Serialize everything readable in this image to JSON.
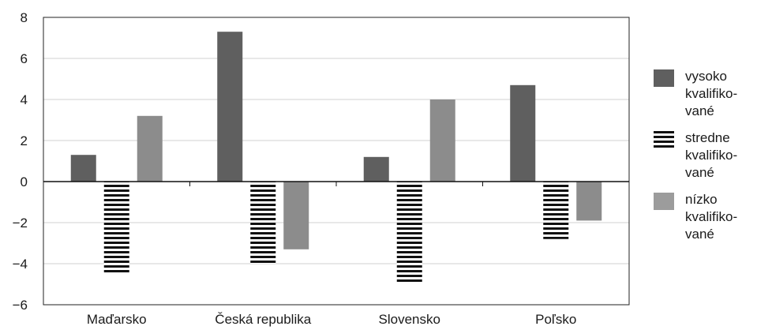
{
  "chart_data": {
    "type": "bar",
    "categories": [
      "Maďarsko",
      "Česká republika",
      "Slovensko",
      "Poľsko"
    ],
    "series": [
      {
        "name": "vysoko kvalifiko-vané",
        "values": [
          1.3,
          7.3,
          1.2,
          4.7
        ],
        "color": "#5f5f5f",
        "pattern": "solid"
      },
      {
        "name": "stredne kvalifiko-vané",
        "values": [
          -4.5,
          -4.0,
          -5.0,
          -2.8
        ],
        "color": "#111111",
        "pattern": "horizontal-stripes"
      },
      {
        "name": "nízko kvalifiko-vané",
        "values": [
          3.2,
          -3.3,
          4.0,
          -1.9
        ],
        "color": "#8c8c8c",
        "pattern": "solid"
      }
    ],
    "ylim": [
      -6,
      8
    ],
    "yticks": [
      "−6",
      "−4",
      "−2",
      "0",
      "2",
      "4",
      "6",
      "8"
    ],
    "ytick_values": [
      -6,
      -4,
      -2,
      0,
      2,
      4,
      6,
      8
    ],
    "grid": true,
    "legend_position": "right"
  },
  "legend": {
    "items": [
      {
        "label": "vysoko\nkvalifiko-\nvané"
      },
      {
        "label": "stredne\nkvalifiko-\nvané"
      },
      {
        "label": "nízko\nkvalifiko-\nvané"
      }
    ]
  }
}
